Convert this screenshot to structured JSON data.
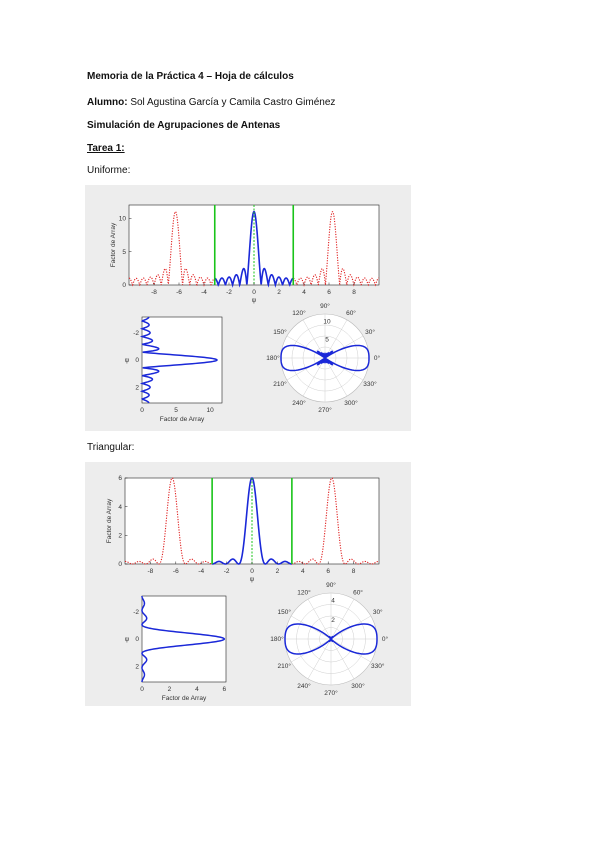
{
  "header": {
    "title": "Memoria de la Práctica 4 – Hoja de cálculos",
    "student_label": "Alumno:",
    "student_names": " Sol Agustina García y Camila Castro Giménez",
    "subtitle": "Simulación de Agrupaciones de Antenas",
    "task": "Tarea 1:"
  },
  "sections": [
    {
      "label": "Uniforme:"
    },
    {
      "label": "Triangular:"
    }
  ],
  "chart_data": [
    {
      "type": "line",
      "name": "uniforme-array-factor",
      "xlabel": "ψ",
      "ylabel": "Factor de Array",
      "xlim": [
        -10,
        10
      ],
      "ylim": [
        0,
        12
      ],
      "xticks": [
        "-8",
        "-6",
        "-4",
        "-2",
        "0",
        "2",
        "4",
        "6",
        "8"
      ],
      "yticks": [
        "0",
        "5",
        "10"
      ],
      "series": [
        {
          "color": "#e02020",
          "style": "dotted",
          "x": [
            -9.6,
            -8.8,
            -7.6,
            -6.28,
            -5.0,
            -4.0,
            -3.14
          ],
          "y": [
            0.8,
            1.4,
            2.0,
            11,
            2.0,
            1.2,
            0.6
          ]
        },
        {
          "color": "#1a28d8",
          "style": "solid",
          "x": [
            -3.14,
            -2.2,
            -1.6,
            -1.0,
            -0.5,
            0,
            0.5,
            1.0,
            1.6,
            2.2,
            3.14
          ],
          "y": [
            0.3,
            1.0,
            1.3,
            2.0,
            2.4,
            11,
            2.4,
            2.0,
            1.3,
            1.0,
            0.3
          ]
        },
        {
          "color": "#e02020",
          "style": "dotted",
          "x": [
            3.14,
            4.0,
            5.0,
            6.28,
            7.6,
            8.8,
            9.6
          ],
          "y": [
            0.6,
            1.2,
            2.0,
            11,
            2.0,
            1.4,
            0.8
          ]
        }
      ],
      "vlines": [
        {
          "x": -3.14,
          "color": "#19c419"
        },
        {
          "x": 3.14,
          "color": "#19c419"
        },
        {
          "x": 0,
          "color": "#19c419",
          "style": "dashed"
        }
      ]
    },
    {
      "type": "line",
      "name": "uniforme-vertical",
      "xlabel": "Factor de Array",
      "ylabel": "ψ",
      "xticks": [
        "0",
        "5",
        "10"
      ],
      "yticks": [
        "-2",
        "0",
        "2"
      ]
    },
    {
      "type": "line",
      "name": "uniforme-polar",
      "angle_labels": [
        "90°",
        "60°",
        "30°",
        "0°",
        "330°",
        "300°",
        "270°",
        "240°",
        "210°",
        "180°",
        "150°",
        "120°"
      ],
      "radial_labels": [
        "5",
        "10"
      ]
    },
    {
      "type": "line",
      "name": "triangular-array-factor",
      "xlabel": "ψ",
      "ylabel": "Factor de Array",
      "xlim": [
        -10,
        10
      ],
      "ylim": [
        0,
        6
      ],
      "xticks": [
        "-8",
        "-6",
        "-4",
        "-2",
        "0",
        "2",
        "4",
        "6",
        "8"
      ],
      "yticks": [
        "0",
        "2",
        "4",
        "6"
      ],
      "series": [
        {
          "color": "#e02020",
          "style": "dotted"
        },
        {
          "color": "#1a28d8",
          "style": "solid"
        },
        {
          "color": "#e02020",
          "style": "dotted"
        }
      ],
      "vlines": [
        {
          "x": -3.14,
          "color": "#19c419"
        },
        {
          "x": 3.14,
          "color": "#19c419"
        },
        {
          "x": 0,
          "color": "#19c419",
          "style": "dashed"
        }
      ]
    },
    {
      "type": "line",
      "name": "triangular-vertical",
      "xlabel": "Factor de Array",
      "ylabel": "ψ",
      "xticks": [
        "0",
        "2",
        "4",
        "6"
      ],
      "yticks": [
        "-2",
        "0",
        "2"
      ]
    },
    {
      "type": "line",
      "name": "triangular-polar",
      "angle_labels": [
        "90°",
        "60°",
        "30°",
        "0°",
        "330°",
        "300°",
        "270°",
        "240°",
        "210°",
        "180°",
        "150°",
        "120°"
      ],
      "radial_labels": [
        "2",
        "4"
      ]
    }
  ]
}
